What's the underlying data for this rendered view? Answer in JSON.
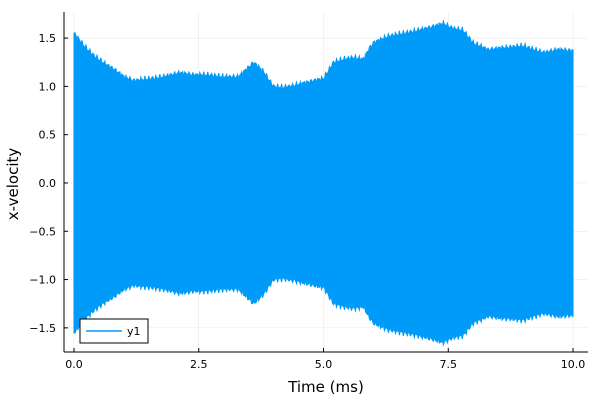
{
  "chart_data": {
    "type": "area",
    "title": "",
    "xlabel": "Time (ms)",
    "ylabel": "x-velocity",
    "xlim": [
      -0.2,
      10.3
    ],
    "ylim": [
      -1.75,
      1.77
    ],
    "xticks": [
      0,
      2.5,
      5,
      7.5,
      10
    ],
    "xtick_labels": [
      "0.0",
      "2.5",
      "5.0",
      "7.5",
      "10.0"
    ],
    "yticks": [
      -1.5,
      -1.0,
      -0.5,
      0,
      0.5,
      1.0,
      1.5
    ],
    "ytick_labels": [
      "−1.5",
      "−1.0",
      "−0.5",
      "0.0",
      "0.5",
      "1.0",
      "1.5"
    ],
    "grid": true,
    "legend": "bottom-left",
    "series": [
      {
        "name": "y1",
        "color": "#009af9",
        "description_of_shape": "rapid oscillation filling an envelope symmetric about zero",
        "envelope_x": [
          0,
          0.05,
          0.2,
          0.4,
          0.6,
          0.8,
          1.0,
          1.2,
          1.5,
          1.8,
          2.1,
          2.4,
          2.7,
          3.0,
          3.3,
          3.6,
          3.8,
          4.0,
          4.2,
          4.5,
          4.8,
          5.0,
          5.2,
          5.4,
          5.6,
          5.8,
          5.9,
          6.0,
          6.3,
          6.6,
          6.9,
          7.2,
          7.4,
          7.6,
          7.8,
          8.0,
          8.3,
          8.6,
          9.0,
          9.4,
          9.7,
          10.0
        ],
        "envelope_amplitude": [
          1.55,
          1.52,
          1.42,
          1.32,
          1.24,
          1.18,
          1.1,
          1.06,
          1.08,
          1.1,
          1.14,
          1.12,
          1.12,
          1.1,
          1.1,
          1.25,
          1.15,
          1.0,
          0.99,
          1.02,
          1.06,
          1.08,
          1.25,
          1.28,
          1.3,
          1.28,
          1.38,
          1.45,
          1.52,
          1.55,
          1.58,
          1.62,
          1.65,
          1.6,
          1.58,
          1.45,
          1.38,
          1.4,
          1.42,
          1.35,
          1.38,
          1.37
        ]
      }
    ]
  }
}
